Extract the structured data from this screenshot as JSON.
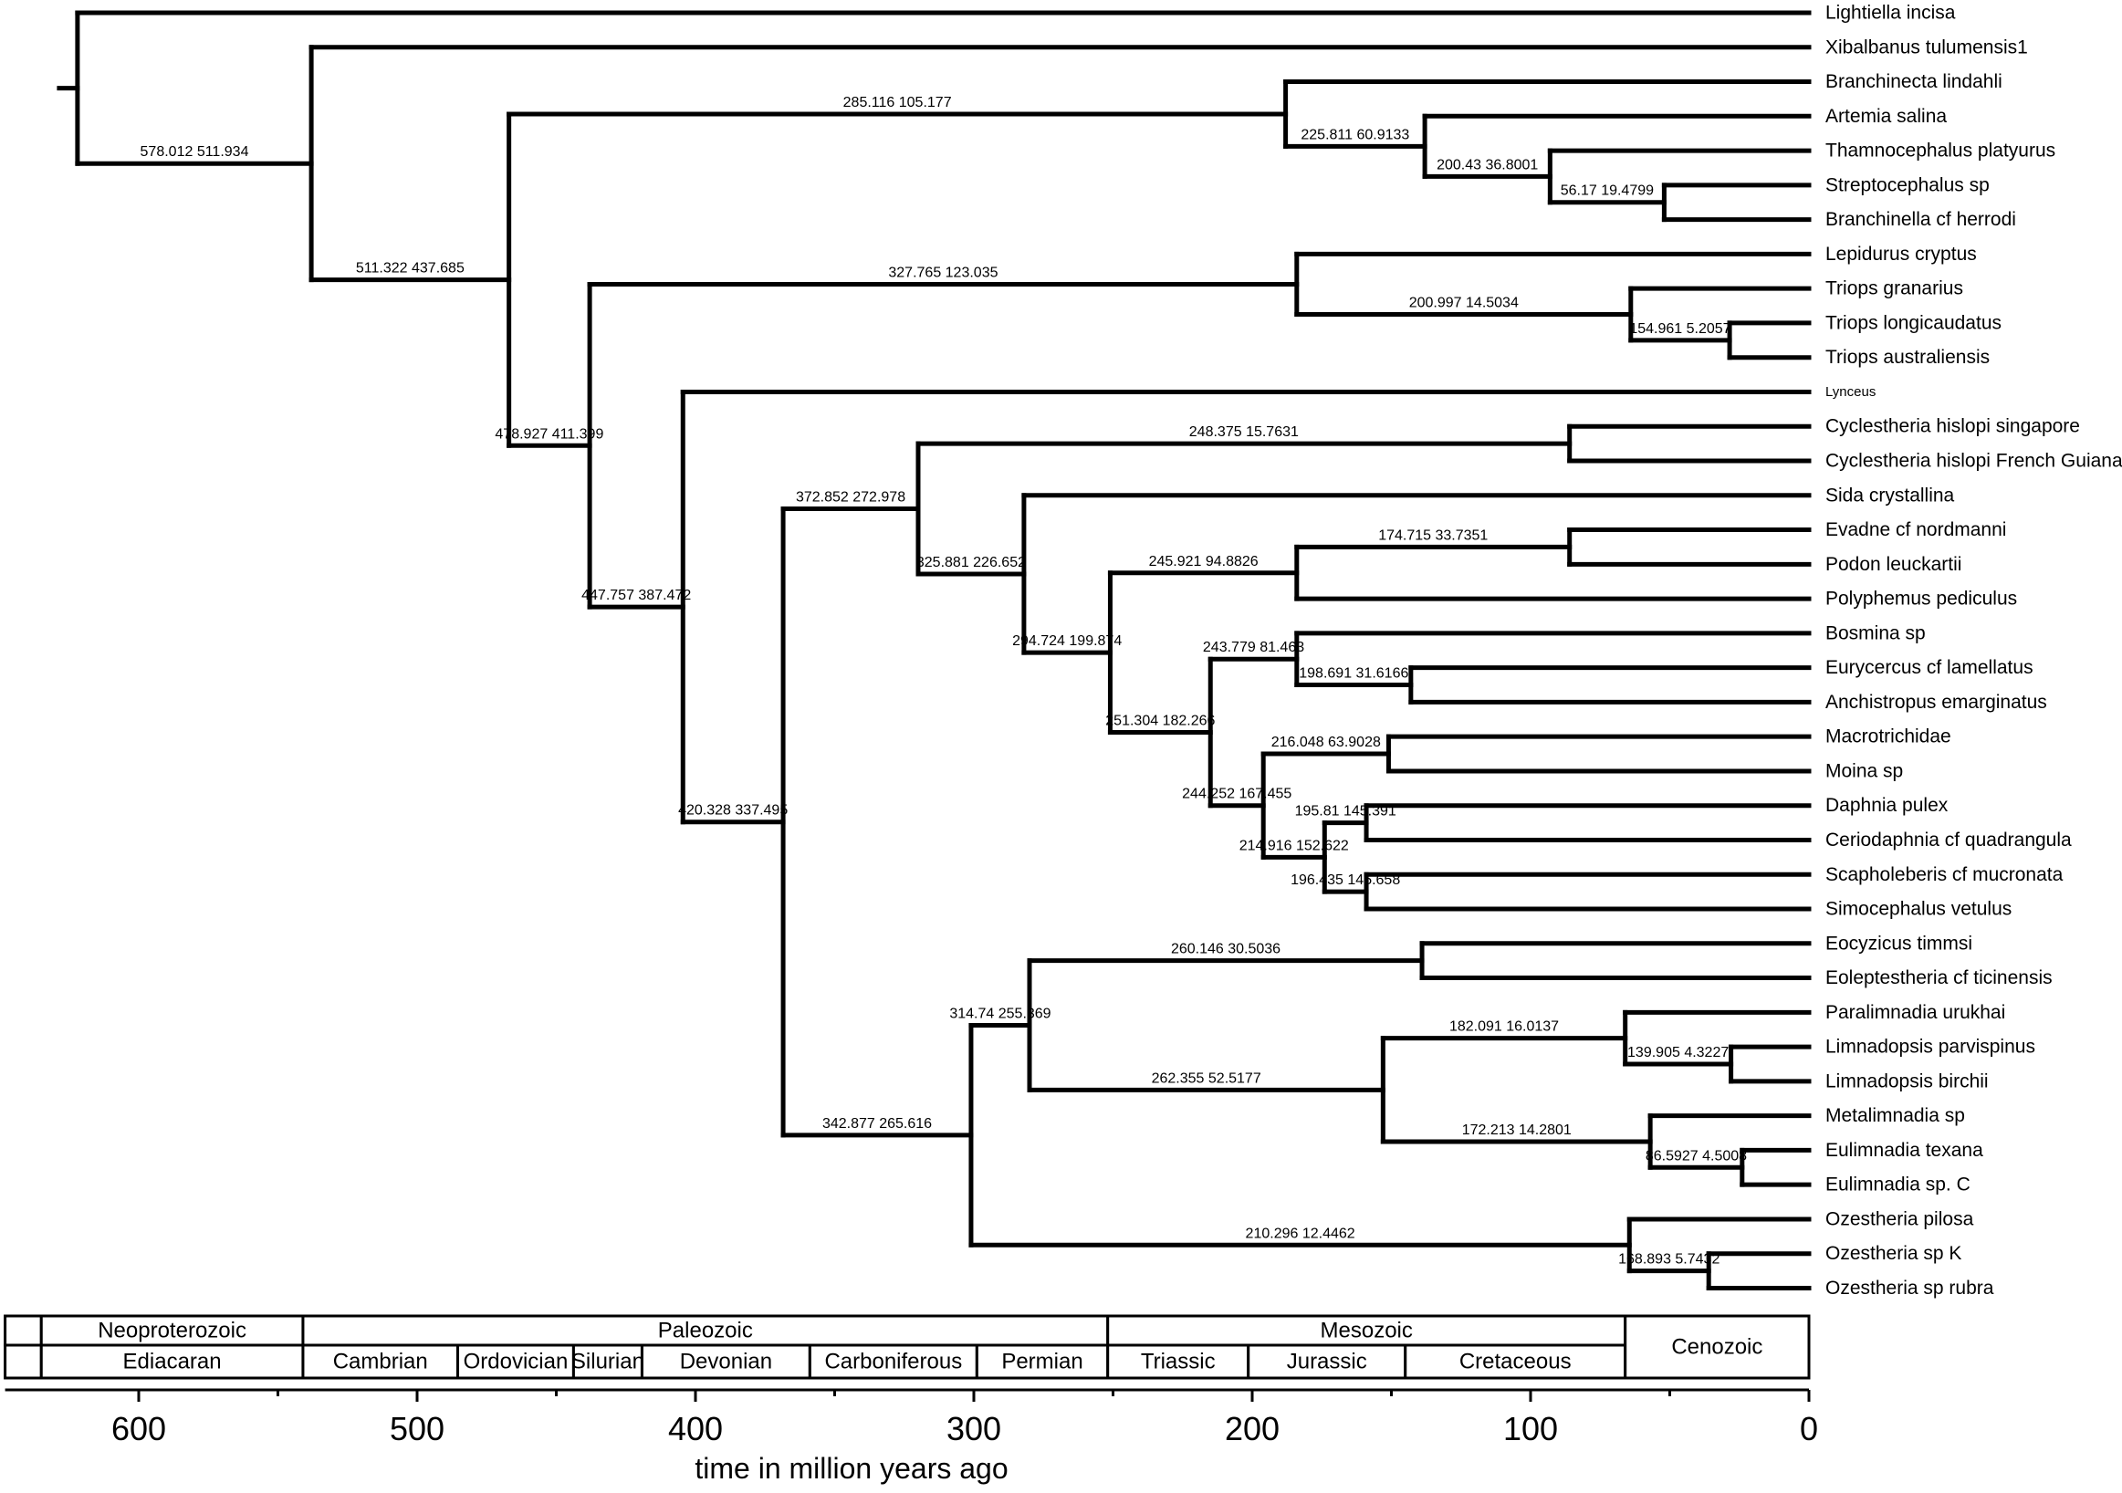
{
  "figure_type": "phylogenetic-chronogram",
  "colors": {
    "line": "#000000",
    "text": "#000000",
    "background": "#ffffff"
  },
  "axis": {
    "title": "time in million years ago",
    "major_ticks": [
      600,
      500,
      400,
      300,
      200,
      100,
      0
    ],
    "minor_tick_step": 50,
    "max_age": 648
  },
  "timescale": {
    "era_row": [
      {
        "name": "",
        "from": 648,
        "to": 635
      },
      {
        "name": "Neoproterozoic",
        "from": 635,
        "to": 541
      },
      {
        "name": "Paleozoic",
        "from": 541,
        "to": 251.9
      },
      {
        "name": "Mesozoic",
        "from": 251.9,
        "to": 66
      }
    ],
    "period_row": [
      {
        "name": "",
        "from": 648,
        "to": 635
      },
      {
        "name": "Ediacaran",
        "from": 635,
        "to": 541
      },
      {
        "name": "Cambrian",
        "from": 541,
        "to": 485.4
      },
      {
        "name": "Ordovician",
        "from": 485.4,
        "to": 443.8
      },
      {
        "name": "Silurian",
        "from": 443.8,
        "to": 419.2
      },
      {
        "name": "Devonian",
        "from": 419.2,
        "to": 358.9
      },
      {
        "name": "Carboniferous",
        "from": 358.9,
        "to": 298.9
      },
      {
        "name": "Permian",
        "from": 298.9,
        "to": 251.9
      },
      {
        "name": "Triassic",
        "from": 251.9,
        "to": 201.4
      },
      {
        "name": "Jurassic",
        "from": 201.4,
        "to": 145
      },
      {
        "name": "Cretaceous",
        "from": 145,
        "to": 66
      }
    ],
    "spanning_cell": {
      "name": "Cenozoic",
      "from": 66,
      "to": 0
    }
  },
  "tree": {
    "age": 622,
    "children": [
      {
        "name": "Lightiella incisa",
        "age": 0
      },
      {
        "label": "578.012 511.934",
        "age": 538,
        "children": [
          {
            "name": "Xibalbanus tulumensis1",
            "age": 0
          },
          {
            "label": "511.322 437.685",
            "age": 467,
            "children": [
              {
                "label": "285.116 105.177",
                "age": 188,
                "children": [
                  {
                    "name": "Branchinecta lindahli",
                    "age": 0
                  },
                  {
                    "label": "225.811 60.9133",
                    "age": 138,
                    "children": [
                      {
                        "name": "Artemia salina",
                        "age": 0
                      },
                      {
                        "label": "200.43 36.8001",
                        "age": 93,
                        "children": [
                          {
                            "name": "Thamnocephalus platyurus",
                            "age": 0
                          },
                          {
                            "label": "56.17 19.4799",
                            "age": 52,
                            "children": [
                              {
                                "name": "Streptocephalus sp",
                                "age": 0
                              },
                              {
                                "name": "Branchinella cf herrodi",
                                "age": 0
                              }
                            ]
                          }
                        ]
                      }
                    ]
                  }
                ]
              },
              {
                "label": "478.927 411.399",
                "age": 438,
                "children": [
                  {
                    "label": "327.765 123.035",
                    "age": 184,
                    "children": [
                      {
                        "name": "Lepidurus cryptus",
                        "age": 0
                      },
                      {
                        "label": "200.997 14.5034",
                        "age": 64,
                        "children": [
                          {
                            "name": "Triops granarius",
                            "age": 0
                          },
                          {
                            "label": "154.961 5.2057",
                            "age": 28.5,
                            "children": [
                              {
                                "name": "Triops longicaudatus",
                                "age": 0
                              },
                              {
                                "name": "Triops australiensis",
                                "age": 0
                              }
                            ]
                          }
                        ]
                      }
                    ]
                  },
                  {
                    "label": "447.757 387.472",
                    "age": 404.5,
                    "children": [
                      {
                        "name": "Lynceus",
                        "age": 0,
                        "small": true
                      },
                      {
                        "label": "420.328 337.495",
                        "age": 368.5,
                        "children": [
                          {
                            "label": "372.852 272.978",
                            "age": 320,
                            "children": [
                              {
                                "label": "248.375 15.7631",
                                "age": 86,
                                "children": [
                                  {
                                    "name": "Cyclestheria hislopi singapore",
                                    "age": 0
                                  },
                                  {
                                    "name": "Cyclestheria hislopi French Guiana",
                                    "age": 0
                                  }
                                ]
                              },
                              {
                                "label": "325.881 226.652",
                                "age": 282,
                                "children": [
                                  {
                                    "name": "Sida crystallina",
                                    "age": 0
                                  },
                                  {
                                    "label": "294.724 199.874",
                                    "age": 251,
                                    "children": [
                                      {
                                        "label": "245.921 94.8826",
                                        "age": 184,
                                        "children": [
                                          {
                                            "label": "174.715 33.7351",
                                            "age": 86,
                                            "children": [
                                              {
                                                "name": "Evadne cf nordmanni",
                                                "age": 0
                                              },
                                              {
                                                "name": "Podon leuckartii",
                                                "age": 0
                                              }
                                            ]
                                          },
                                          {
                                            "name": "Polyphemus pediculus",
                                            "age": 0
                                          }
                                        ]
                                      },
                                      {
                                        "label": "251.304 182.266",
                                        "age": 215,
                                        "children": [
                                          {
                                            "label": "243.779 81.463",
                                            "age": 184,
                                            "children": [
                                              {
                                                "name": "Bosmina sp",
                                                "age": 0
                                              },
                                              {
                                                "label": "198.691 31.6166",
                                                "age": 143,
                                                "children": [
                                                  {
                                                    "name": "Eurycercus cf lamellatus",
                                                    "age": 0
                                                  },
                                                  {
                                                    "name": "Anchistropus emarginatus",
                                                    "age": 0
                                                  }
                                                ]
                                              }
                                            ]
                                          },
                                          {
                                            "label": "244.252 167.455",
                                            "age": 196,
                                            "children": [
                                              {
                                                "label": "216.048 63.9028",
                                                "age": 151,
                                                "children": [
                                                  {
                                                    "name": "Macrotrichidae",
                                                    "age": 0
                                                  },
                                                  {
                                                    "name": "Moina sp",
                                                    "age": 0
                                                  }
                                                ]
                                              },
                                              {
                                                "label": "214.916 152.622",
                                                "age": 174,
                                                "children": [
                                                  {
                                                    "label": "195.81 145.391",
                                                    "age": 159,
                                                    "children": [
                                                      {
                                                        "name": "Daphnia pulex",
                                                        "age": 0
                                                      },
                                                      {
                                                        "name": "Ceriodaphnia cf quadrangula",
                                                        "age": 0
                                                      }
                                                    ]
                                                  },
                                                  {
                                                    "label": "196.435 145.658",
                                                    "age": 159,
                                                    "children": [
                                                      {
                                                        "name": "Scapholeberis cf mucronata",
                                                        "age": 0
                                                      },
                                                      {
                                                        "name": "Simocephalus vetulus",
                                                        "age": 0
                                                      }
                                                    ]
                                                  }
                                                ]
                                              }
                                            ]
                                          }
                                        ]
                                      }
                                    ]
                                  }
                                ]
                              }
                            ]
                          },
                          {
                            "label": "342.877 265.616",
                            "age": 301,
                            "children": [
                              {
                                "label": "314.74 255.369",
                                "age": 280,
                                "children": [
                                  {
                                    "label": "260.146 30.5036",
                                    "age": 139,
                                    "children": [
                                      {
                                        "name": "Eocyzicus timmsi",
                                        "age": 0
                                      },
                                      {
                                        "name": "Eoleptestheria cf ticinensis",
                                        "age": 0
                                      }
                                    ]
                                  },
                                  {
                                    "label": "262.355 52.5177",
                                    "age": 153,
                                    "children": [
                                      {
                                        "label": "182.091 16.0137",
                                        "age": 66,
                                        "children": [
                                          {
                                            "name": "Paralimnadia urukhai",
                                            "age": 0
                                          },
                                          {
                                            "label": "139.905 4.3227",
                                            "age": 28,
                                            "children": [
                                              {
                                                "name": "Limnadopsis parvispinus",
                                                "age": 0
                                              },
                                              {
                                                "name": "Limnadopsis birchii",
                                                "age": 0
                                              }
                                            ]
                                          }
                                        ]
                                      },
                                      {
                                        "label": "172.213 14.2801",
                                        "age": 57,
                                        "children": [
                                          {
                                            "name": "Metalimnadia sp",
                                            "age": 0
                                          },
                                          {
                                            "label": "86.5927 4.5008",
                                            "age": 24,
                                            "children": [
                                              {
                                                "name": "Eulimnadia texana",
                                                "age": 0
                                              },
                                              {
                                                "name": "Eulimnadia sp. C",
                                                "age": 0
                                              }
                                            ]
                                          }
                                        ]
                                      }
                                    ]
                                  }
                                ]
                              },
                              {
                                "label": "210.296 12.4462",
                                "age": 64.5,
                                "children": [
                                  {
                                    "name": "Ozestheria pilosa",
                                    "age": 0
                                  },
                                  {
                                    "label": "168.893 5.7432",
                                    "age": 36,
                                    "children": [
                                      {
                                        "name": "Ozestheria sp K",
                                        "age": 0
                                      },
                                      {
                                        "name": "Ozestheria sp rubra",
                                        "age": 0
                                      }
                                    ]
                                  }
                                ]
                              }
                            ]
                          }
                        ]
                      }
                    ]
                  }
                ]
              }
            ]
          }
        ]
      }
    ]
  }
}
